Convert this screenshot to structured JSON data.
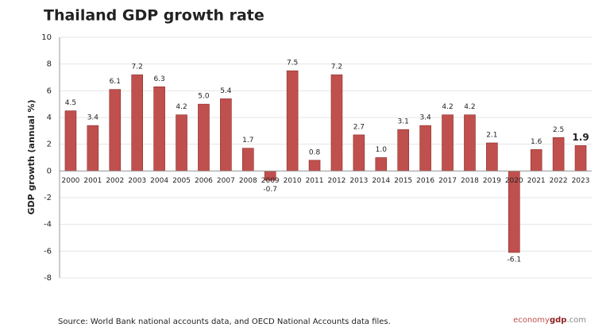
{
  "chart_data": {
    "type": "bar",
    "title": "Thailand GDP growth rate",
    "y_label": "GDP growth (annual %)",
    "categories": [
      "2000",
      "2001",
      "2002",
      "2003",
      "2004",
      "2005",
      "2006",
      "2007",
      "2008",
      "2009",
      "2010",
      "2011",
      "2012",
      "2013",
      "2014",
      "2015",
      "2016",
      "2017",
      "2018",
      "2019",
      "2020",
      "2021",
      "2022",
      "2023"
    ],
    "values": [
      4.5,
      3.4,
      6.1,
      7.2,
      6.3,
      4.2,
      5.0,
      5.4,
      1.7,
      -0.7,
      7.5,
      0.8,
      7.2,
      2.7,
      1.0,
      3.1,
      3.4,
      4.2,
      4.2,
      2.1,
      -6.1,
      1.6,
      2.5,
      1.9
    ],
    "value_labels": [
      "4.5",
      "3.4",
      "6.1",
      "7.2",
      "6.3",
      "4.2",
      "5.0",
      "5.4",
      "1.7",
      "-0.7",
      "7.5",
      "0.8",
      "7.2",
      "2.7",
      "1.0",
      "3.1",
      "3.4",
      "4.2",
      "4.2",
      "2.1",
      "-6.1",
      "1.6",
      "2.5",
      "1.9"
    ],
    "color": "#c0504d",
    "ylim": [
      -8,
      10
    ],
    "yticks": [
      -8,
      -6,
      -4,
      -2,
      0,
      2,
      4,
      6,
      8,
      10
    ],
    "grid": true,
    "source": "Source: World Bank national accounts data, and OECD National Accounts data files.",
    "brand": [
      "economy",
      "gdp",
      ".com"
    ]
  }
}
